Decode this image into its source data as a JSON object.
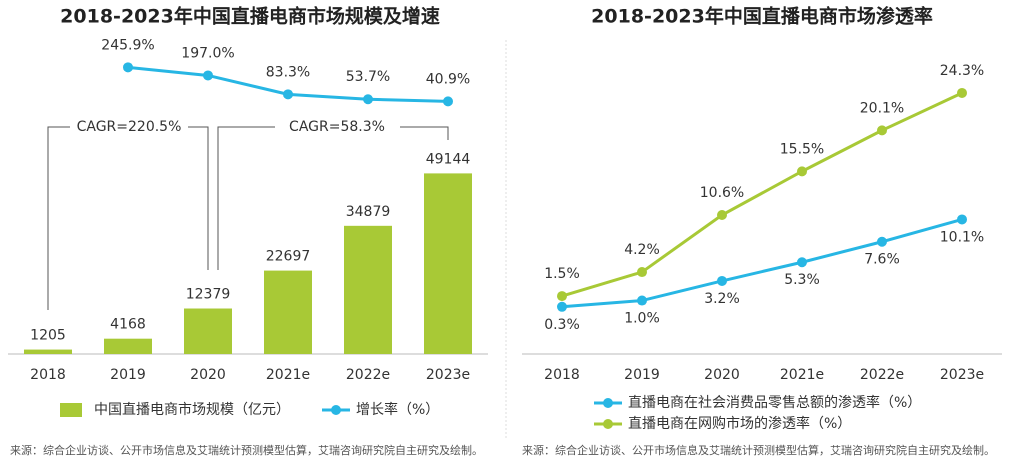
{
  "chart_data": [
    {
      "type": "bar_line",
      "title": "2018-2023年中国直播电商市场规模及增速",
      "categories": [
        "2018",
        "2019",
        "2020",
        "2021e",
        "2022e",
        "2023e"
      ],
      "ylim": [
        0,
        80000
      ],
      "y2lim": [
        -1480,
        290
      ],
      "series": [
        {
          "name": "中国直播电商市场规模（亿元）",
          "color": "#a8c936",
          "values": [
            1205,
            4168,
            12379,
            22697,
            34879,
            49144
          ]
        },
        {
          "name": "增长率（%）",
          "color": "#27b6e4",
          "axis": "y2",
          "values": [
            null,
            245.9,
            197.0,
            83.3,
            53.7,
            40.9
          ],
          "value_labels": [
            null,
            "245.9%",
            "197.0%",
            "83.3%",
            "53.7%",
            "40.9%"
          ]
        }
      ],
      "annotations": [
        "CAGR=220.5%",
        "CAGR=58.3%"
      ],
      "source": "来源：综合企业访谈、公开市场信息及艾瑞统计预测模型估算，艾瑞咨询研究院自主研究及绘制。"
    },
    {
      "type": "line",
      "title": "2018-2023年中国直播电商市场渗透率",
      "categories": [
        "2018",
        "2019",
        "2020",
        "2021e",
        "2022e",
        "2023e"
      ],
      "ylim": [
        -5,
        28
      ],
      "series": [
        {
          "name": "直播电商在社会消费品零售总额的渗透率（%）",
          "color": "#27b6e4",
          "values": [
            0.3,
            1.0,
            3.2,
            5.3,
            7.6,
            10.1
          ],
          "value_labels": [
            "0.3%",
            "1.0%",
            "3.2%",
            "5.3%",
            "7.6%",
            "10.1%"
          ]
        },
        {
          "name": "直播电商在网购市场的渗透率（%）",
          "color": "#a8c936",
          "values": [
            1.5,
            4.2,
            10.6,
            15.5,
            20.1,
            24.3
          ],
          "value_labels": [
            "1.5%",
            "4.2%",
            "10.6%",
            "15.5%",
            "20.1%",
            "24.3%"
          ]
        }
      ],
      "source": "来源：综合企业访谈、公开市场信息及艾瑞统计预测模型估算，艾瑞咨询研究院自主研究及绘制。"
    }
  ]
}
